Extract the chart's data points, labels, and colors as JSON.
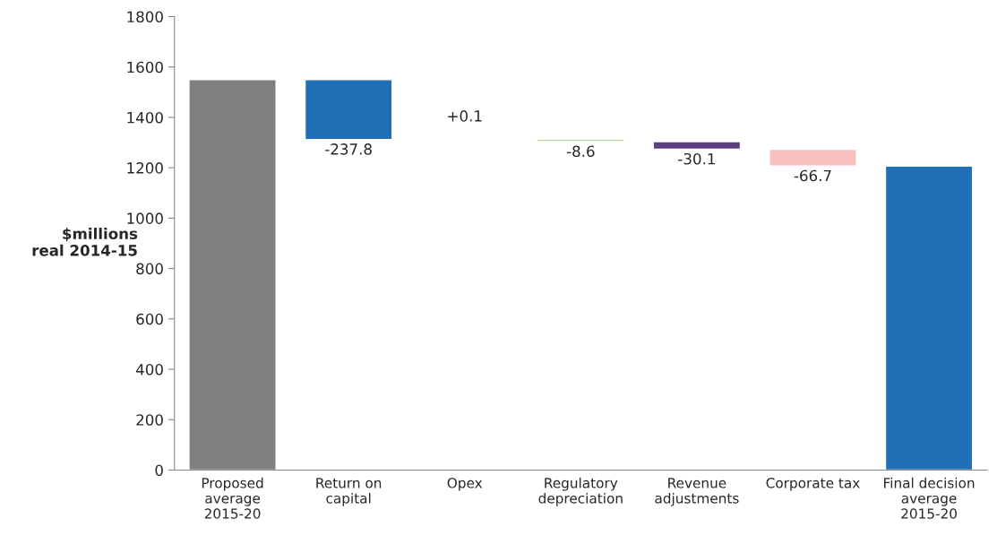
{
  "chart_data": {
    "type": "bar",
    "ylabel": "$millions\nreal 2014-15",
    "categories": [
      "Proposed\naverage\n2015-20",
      "Return on\ncapital",
      "Opex",
      "Regulatory\ndepreciation",
      "Revenue\nadjustments",
      "Corporate tax",
      "Final decision\naverage\n2015-20"
    ],
    "values": [
      1550,
      -237.8,
      0.1,
      -8.6,
      -30.1,
      -66.7,
      1207
    ],
    "base": [
      0,
      1550,
      1312.2,
      1312.3,
      1303.7,
      1273.6,
      0
    ],
    "colors": [
      "#7f7f7f",
      "#2170b5",
      "#3b3b5c",
      "#a9d18e",
      "#5b3f7e",
      "#f8bfbf",
      "#2170b5"
    ],
    "value_labels": [
      null,
      "-237.8",
      "+0.1",
      "-8.6",
      "-30.1",
      "-66.7",
      null
    ],
    "ylim": [
      0,
      1800
    ],
    "yticks": [
      0,
      200,
      400,
      600,
      800,
      1000,
      1200,
      1400,
      1600,
      1800
    ],
    "grid": false,
    "legend": false
  }
}
